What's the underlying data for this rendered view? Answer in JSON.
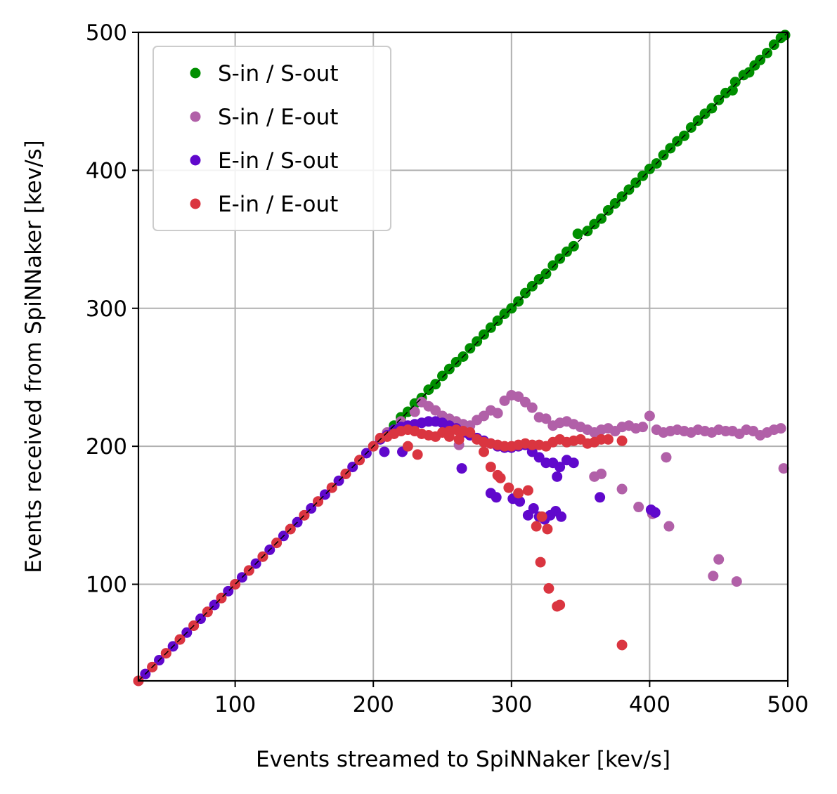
{
  "chart_data": {
    "type": "scatter",
    "title": "",
    "xlabel": "Events streamed to SpiNNaker [kev/s]",
    "ylabel": "Events received from SpiNNaker [kev/s]",
    "xlim": [
      30,
      500
    ],
    "ylim": [
      30,
      500
    ],
    "xticks": [
      100,
      200,
      300,
      400,
      500
    ],
    "yticks": [
      100,
      200,
      300,
      400,
      500
    ],
    "grid": true,
    "legend_position": "top-left",
    "reference_line": {
      "style": "dashed",
      "color": "#000000",
      "from": [
        30,
        30
      ],
      "to": [
        500,
        500
      ]
    },
    "series": [
      {
        "name": "S-in / S-out",
        "color": "#008f00",
        "points": [
          [
            215,
            215
          ],
          [
            220,
            221
          ],
          [
            225,
            225
          ],
          [
            230,
            231
          ],
          [
            235,
            235
          ],
          [
            240,
            241
          ],
          [
            245,
            245
          ],
          [
            250,
            251
          ],
          [
            255,
            256
          ],
          [
            260,
            261
          ],
          [
            265,
            265
          ],
          [
            270,
            271
          ],
          [
            275,
            276
          ],
          [
            280,
            281
          ],
          [
            285,
            286
          ],
          [
            290,
            291
          ],
          [
            295,
            296
          ],
          [
            300,
            300
          ],
          [
            305,
            305
          ],
          [
            310,
            311
          ],
          [
            315,
            316
          ],
          [
            320,
            321
          ],
          [
            325,
            325
          ],
          [
            330,
            331
          ],
          [
            335,
            336
          ],
          [
            340,
            341
          ],
          [
            345,
            345
          ],
          [
            348,
            354
          ],
          [
            355,
            356
          ],
          [
            360,
            361
          ],
          [
            365,
            365
          ],
          [
            370,
            371
          ],
          [
            375,
            376
          ],
          [
            380,
            381
          ],
          [
            385,
            386
          ],
          [
            390,
            391
          ],
          [
            395,
            396
          ],
          [
            400,
            401
          ],
          [
            405,
            405
          ],
          [
            410,
            411
          ],
          [
            415,
            416
          ],
          [
            420,
            421
          ],
          [
            425,
            425
          ],
          [
            430,
            431
          ],
          [
            435,
            436
          ],
          [
            440,
            441
          ],
          [
            445,
            445
          ],
          [
            450,
            451
          ],
          [
            455,
            456
          ],
          [
            460,
            458
          ],
          [
            462,
            464
          ],
          [
            468,
            469
          ],
          [
            472,
            471
          ],
          [
            476,
            476
          ],
          [
            480,
            480
          ],
          [
            485,
            485
          ],
          [
            490,
            491
          ],
          [
            495,
            496
          ],
          [
            498,
            498
          ]
        ]
      },
      {
        "name": "S-in / E-out",
        "color": "#b160a8",
        "points": [
          [
            30,
            30
          ],
          [
            40,
            40
          ],
          [
            50,
            50
          ],
          [
            60,
            60
          ],
          [
            70,
            70
          ],
          [
            80,
            80
          ],
          [
            90,
            90
          ],
          [
            100,
            100
          ],
          [
            110,
            110
          ],
          [
            120,
            120
          ],
          [
            130,
            130
          ],
          [
            140,
            140
          ],
          [
            150,
            150
          ],
          [
            160,
            160
          ],
          [
            170,
            170
          ],
          [
            180,
            180
          ],
          [
            190,
            190
          ],
          [
            200,
            200
          ],
          [
            210,
            210
          ],
          [
            220,
            218
          ],
          [
            230,
            225
          ],
          [
            235,
            232
          ],
          [
            240,
            229
          ],
          [
            245,
            226
          ],
          [
            250,
            222
          ],
          [
            255,
            220
          ],
          [
            260,
            218
          ],
          [
            265,
            216
          ],
          [
            270,
            215
          ],
          [
            275,
            219
          ],
          [
            280,
            222
          ],
          [
            285,
            226
          ],
          [
            290,
            224
          ],
          [
            295,
            233
          ],
          [
            300,
            237
          ],
          [
            305,
            236
          ],
          [
            310,
            232
          ],
          [
            315,
            228
          ],
          [
            320,
            221
          ],
          [
            325,
            220
          ],
          [
            330,
            215
          ],
          [
            335,
            217
          ],
          [
            340,
            218
          ],
          [
            345,
            216
          ],
          [
            350,
            214
          ],
          [
            355,
            212
          ],
          [
            360,
            210
          ],
          [
            365,
            212
          ],
          [
            370,
            213
          ],
          [
            375,
            211
          ],
          [
            380,
            214
          ],
          [
            385,
            215
          ],
          [
            390,
            213
          ],
          [
            395,
            214
          ],
          [
            400,
            222
          ],
          [
            405,
            212
          ],
          [
            410,
            210
          ],
          [
            415,
            211
          ],
          [
            420,
            212
          ],
          [
            425,
            211
          ],
          [
            430,
            210
          ],
          [
            435,
            212
          ],
          [
            440,
            211
          ],
          [
            445,
            210
          ],
          [
            450,
            212
          ],
          [
            455,
            211
          ],
          [
            460,
            211
          ],
          [
            465,
            209
          ],
          [
            470,
            212
          ],
          [
            475,
            211
          ],
          [
            480,
            208
          ],
          [
            485,
            210
          ],
          [
            490,
            212
          ],
          [
            495,
            213
          ],
          [
            262,
            201
          ],
          [
            360,
            178
          ],
          [
            365,
            180
          ],
          [
            380,
            169
          ],
          [
            392,
            156
          ],
          [
            402,
            151
          ],
          [
            412,
            192
          ],
          [
            414,
            142
          ],
          [
            446,
            106
          ],
          [
            450,
            118
          ],
          [
            463,
            102
          ],
          [
            497,
            184
          ]
        ]
      },
      {
        "name": "E-in / S-out",
        "color": "#6008cc",
        "points": [
          [
            35,
            35
          ],
          [
            45,
            45
          ],
          [
            55,
            55
          ],
          [
            65,
            65
          ],
          [
            75,
            75
          ],
          [
            85,
            85
          ],
          [
            95,
            95
          ],
          [
            105,
            105
          ],
          [
            115,
            115
          ],
          [
            125,
            125
          ],
          [
            135,
            135
          ],
          [
            145,
            145
          ],
          [
            155,
            155
          ],
          [
            165,
            165
          ],
          [
            175,
            175
          ],
          [
            185,
            185
          ],
          [
            195,
            195
          ],
          [
            205,
            205
          ],
          [
            210,
            208
          ],
          [
            215,
            212
          ],
          [
            220,
            214
          ],
          [
            225,
            215
          ],
          [
            230,
            216
          ],
          [
            235,
            217
          ],
          [
            240,
            218
          ],
          [
            245,
            218
          ],
          [
            250,
            217
          ],
          [
            255,
            215
          ],
          [
            260,
            213
          ],
          [
            265,
            210
          ],
          [
            270,
            208
          ],
          [
            275,
            206
          ],
          [
            280,
            204
          ],
          [
            285,
            202
          ],
          [
            290,
            200
          ],
          [
            295,
            199
          ],
          [
            300,
            199
          ],
          [
            305,
            200
          ],
          [
            310,
            201
          ],
          [
            315,
            196
          ],
          [
            320,
            192
          ],
          [
            325,
            188
          ],
          [
            330,
            188
          ],
          [
            335,
            185
          ],
          [
            340,
            190
          ],
          [
            345,
            188
          ],
          [
            208,
            196
          ],
          [
            221,
            196
          ],
          [
            264,
            184
          ],
          [
            285,
            166
          ],
          [
            289,
            163
          ],
          [
            301,
            162
          ],
          [
            306,
            160
          ],
          [
            312,
            150
          ],
          [
            316,
            155
          ],
          [
            320,
            149
          ],
          [
            324,
            147
          ],
          [
            328,
            150
          ],
          [
            332,
            153
          ],
          [
            336,
            149
          ],
          [
            333,
            178
          ],
          [
            364,
            163
          ],
          [
            401,
            154
          ],
          [
            404,
            152
          ]
        ]
      },
      {
        "name": "E-in / E-out",
        "color": "#da3540",
        "points": [
          [
            30,
            30
          ],
          [
            40,
            40
          ],
          [
            50,
            50
          ],
          [
            60,
            60
          ],
          [
            70,
            70
          ],
          [
            80,
            80
          ],
          [
            90,
            90
          ],
          [
            100,
            100
          ],
          [
            110,
            110
          ],
          [
            120,
            120
          ],
          [
            130,
            130
          ],
          [
            140,
            140
          ],
          [
            150,
            150
          ],
          [
            160,
            160
          ],
          [
            170,
            170
          ],
          [
            180,
            180
          ],
          [
            190,
            190
          ],
          [
            200,
            200
          ],
          [
            205,
            206
          ],
          [
            210,
            207
          ],
          [
            215,
            209
          ],
          [
            220,
            211
          ],
          [
            225,
            212
          ],
          [
            230,
            211
          ],
          [
            235,
            209
          ],
          [
            240,
            208
          ],
          [
            245,
            207
          ],
          [
            250,
            210
          ],
          [
            255,
            211
          ],
          [
            260,
            212
          ],
          [
            265,
            211
          ],
          [
            270,
            210
          ],
          [
            275,
            205
          ],
          [
            280,
            203
          ],
          [
            285,
            202
          ],
          [
            290,
            201
          ],
          [
            295,
            200
          ],
          [
            300,
            200
          ],
          [
            305,
            201
          ],
          [
            310,
            202
          ],
          [
            315,
            201
          ],
          [
            320,
            201
          ],
          [
            325,
            200
          ],
          [
            330,
            203
          ],
          [
            335,
            205
          ],
          [
            340,
            203
          ],
          [
            345,
            204
          ],
          [
            350,
            205
          ],
          [
            355,
            202
          ],
          [
            360,
            203
          ],
          [
            365,
            205
          ],
          [
            370,
            205
          ],
          [
            380,
            204
          ],
          [
            225,
            200
          ],
          [
            232,
            194
          ],
          [
            255,
            207
          ],
          [
            262,
            205
          ],
          [
            280,
            196
          ],
          [
            285,
            185
          ],
          [
            290,
            179
          ],
          [
            292,
            177
          ],
          [
            298,
            170
          ],
          [
            305,
            166
          ],
          [
            312,
            168
          ],
          [
            318,
            142
          ],
          [
            322,
            149
          ],
          [
            326,
            140
          ],
          [
            321,
            116
          ],
          [
            327,
            97
          ],
          [
            333,
            84
          ],
          [
            335,
            85
          ],
          [
            380,
            56
          ]
        ]
      }
    ]
  }
}
